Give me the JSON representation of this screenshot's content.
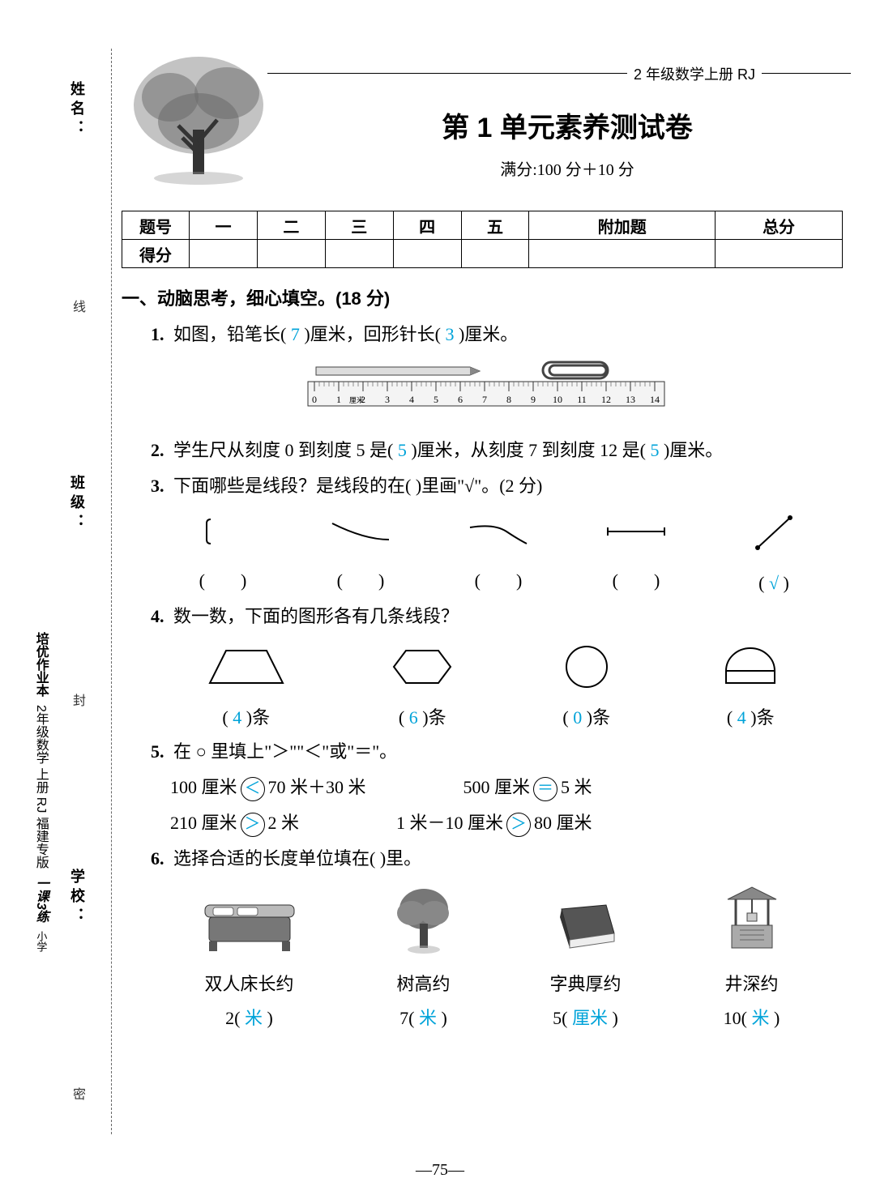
{
  "header": {
    "grade": "2 年级数学上册  RJ",
    "title": "第 1 单元素养测试卷",
    "subtitle": "满分:100 分＋10 分"
  },
  "score_table": {
    "row1": [
      "题号",
      "一",
      "二",
      "三",
      "四",
      "五",
      "附加题",
      "总分"
    ],
    "row2_label": "得分"
  },
  "side": {
    "name": "姓名：",
    "class": "班级：",
    "school": "学校：",
    "xian": "线",
    "feng": "封",
    "mi": "密",
    "book1": "培优作业本",
    "book2": "2年级数学 上册 RJ 福建专版",
    "brand": "一课3练",
    "small": "小学"
  },
  "section1_title": "一、动脑思考，细心填空。(18 分)",
  "q1": {
    "prefix": "1.",
    "text_a": " 如图，铅笔长( ",
    "ans1": "7",
    "text_b": " )厘米，回形针长( ",
    "ans2": "3",
    "text_c": " )厘米。",
    "ruler_ticks": [
      "0",
      "1",
      "2",
      "3",
      "4",
      "5",
      "6",
      "7",
      "8",
      "9",
      "10",
      "11",
      "12",
      "13",
      "14"
    ],
    "ruler_unit": "厘米"
  },
  "q2": {
    "prefix": "2.",
    "text_a": " 学生尺从刻度 0 到刻度 5 是( ",
    "ans1": "5",
    "text_b": " )厘米，从刻度 7 到刻度 12 是( ",
    "ans2": "5",
    "text_c": " )厘米。"
  },
  "q3": {
    "prefix": "3.",
    "text": " 下面哪些是线段？是线段的在(    )里画\"√\"。(2 分)",
    "ans5": "√"
  },
  "q4": {
    "prefix": "4.",
    "text": " 数一数，下面的图形各有几条线段？",
    "shapes": [
      {
        "ans": "4",
        "label_a": "( ",
        "label_b": " )条"
      },
      {
        "ans": "6",
        "label_a": "( ",
        "label_b": " )条"
      },
      {
        "ans": "0",
        "label_a": "( ",
        "label_b": " )条"
      },
      {
        "ans": "4",
        "label_a": "( ",
        "label_b": " )条"
      }
    ]
  },
  "q5": {
    "prefix": "5.",
    "text": " 在 ○ 里填上\"＞\"\"＜\"或\"＝\"。",
    "row1": [
      {
        "left": "100 厘米",
        "op": "＜",
        "right": "70 米＋30 米"
      },
      {
        "left": "500 厘米",
        "op": "＝",
        "right": "5 米"
      }
    ],
    "row2": [
      {
        "left": "210 厘米",
        "op": "＞",
        "right": "2 米"
      },
      {
        "left": "1 米－10 厘米",
        "op": "＞",
        "right": "80 厘米"
      }
    ]
  },
  "q6": {
    "prefix": "6.",
    "text": " 选择合适的长度单位填在(    )里。",
    "items": [
      {
        "label": "双人床长约",
        "value": "2(",
        "ans": " 米 ",
        "close": ")"
      },
      {
        "label": "树高约",
        "value": "7(",
        "ans": " 米 ",
        "close": ")"
      },
      {
        "label": "字典厚约",
        "value": "5(",
        "ans": " 厘米 ",
        "close": ")"
      },
      {
        "label": "井深约",
        "value": "10(",
        "ans": " 米 ",
        "close": ")"
      }
    ]
  },
  "page_num": "—75—",
  "colors": {
    "answer": "#00a3d9",
    "text": "#000000",
    "bg": "#ffffff"
  }
}
